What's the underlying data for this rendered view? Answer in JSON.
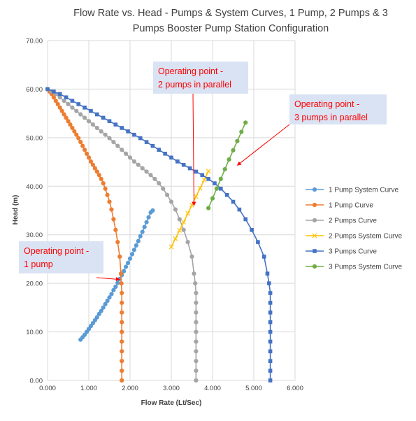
{
  "chart_data": {
    "type": "scatter",
    "title": "Flow Rate vs. Head - Pumps & System Curves, 1 Pump, 2 Pumps & 3 Pumps Booster Pump Station Configuration",
    "title_lines": [
      "Flow Rate vs. Head - Pumps & System Curves, 1 Pump, 2 Pumps & 3",
      "Pumps Booster Pump Station Configuration"
    ],
    "xlabel": "Flow Rate (Lt/Sec)",
    "ylabel": "Head (m)",
    "xlim": [
      0,
      6
    ],
    "ylim": [
      0,
      70
    ],
    "x_ticks": [
      "0.000",
      "1.000",
      "2.000",
      "3.000",
      "4.000",
      "5.000",
      "6.000"
    ],
    "y_ticks": [
      "0.00",
      "10.00",
      "20.00",
      "30.00",
      "40.00",
      "50.00",
      "60.00",
      "70.00"
    ],
    "grid": "vertical and horizontal major gridlines",
    "legend_position": "right",
    "series": [
      {
        "name": "1 Pump System Curve",
        "color": "#5b9bd5",
        "marker": "circle",
        "points": [
          [
            0.8,
            8.4
          ],
          [
            0.85,
            8.9
          ],
          [
            0.9,
            9.4
          ],
          [
            0.95,
            10.0
          ],
          [
            1.0,
            10.6
          ],
          [
            1.05,
            11.2
          ],
          [
            1.1,
            11.8
          ],
          [
            1.15,
            12.4
          ],
          [
            1.2,
            13.0
          ],
          [
            1.25,
            13.7
          ],
          [
            1.3,
            14.3
          ],
          [
            1.35,
            15.0
          ],
          [
            1.4,
            15.7
          ],
          [
            1.45,
            16.4
          ],
          [
            1.5,
            17.1
          ],
          [
            1.55,
            17.8
          ],
          [
            1.6,
            18.6
          ],
          [
            1.65,
            19.3
          ],
          [
            1.7,
            20.1
          ],
          [
            1.75,
            20.9
          ],
          [
            1.8,
            21.7
          ],
          [
            1.85,
            22.5
          ],
          [
            1.9,
            23.4
          ],
          [
            1.95,
            24.2
          ],
          [
            2.0,
            25.1
          ],
          [
            2.05,
            26.0
          ],
          [
            2.1,
            26.9
          ],
          [
            2.15,
            27.8
          ],
          [
            2.2,
            28.7
          ],
          [
            2.25,
            29.7
          ],
          [
            2.3,
            30.6
          ],
          [
            2.35,
            31.6
          ],
          [
            2.4,
            32.6
          ],
          [
            2.45,
            33.6
          ],
          [
            2.5,
            34.6
          ],
          [
            2.55,
            35.0
          ]
        ]
      },
      {
        "name": "1 Pump Curve",
        "color": "#ed7d31",
        "marker": "circle",
        "points": [
          [
            0.0,
            60.0
          ],
          [
            0.05,
            59.5
          ],
          [
            0.1,
            59.0
          ],
          [
            0.15,
            58.3
          ],
          [
            0.2,
            57.6
          ],
          [
            0.25,
            56.9
          ],
          [
            0.3,
            56.2
          ],
          [
            0.35,
            55.5
          ],
          [
            0.4,
            54.8
          ],
          [
            0.45,
            54.1
          ],
          [
            0.5,
            53.4
          ],
          [
            0.55,
            52.7
          ],
          [
            0.6,
            52.0
          ],
          [
            0.65,
            51.3
          ],
          [
            0.7,
            50.6
          ],
          [
            0.75,
            49.9
          ],
          [
            0.8,
            49.1
          ],
          [
            0.85,
            48.3
          ],
          [
            0.9,
            47.5
          ],
          [
            0.95,
            46.7
          ],
          [
            1.0,
            45.9
          ],
          [
            1.05,
            45.1
          ],
          [
            1.1,
            44.4
          ],
          [
            1.15,
            43.7
          ],
          [
            1.2,
            43.0
          ],
          [
            1.25,
            42.3
          ],
          [
            1.3,
            41.5
          ],
          [
            1.35,
            40.6
          ],
          [
            1.4,
            39.5
          ],
          [
            1.45,
            38.2
          ],
          [
            1.5,
            36.8
          ],
          [
            1.55,
            35.2
          ],
          [
            1.6,
            33.2
          ],
          [
            1.65,
            31.0
          ],
          [
            1.7,
            28.5
          ],
          [
            1.75,
            25.5
          ],
          [
            1.78,
            22.0
          ],
          [
            1.79,
            20.0
          ],
          [
            1.8,
            18.0
          ],
          [
            1.8,
            16.0
          ],
          [
            1.8,
            14.0
          ],
          [
            1.8,
            12.0
          ],
          [
            1.8,
            10.0
          ],
          [
            1.8,
            8.0
          ],
          [
            1.8,
            6.0
          ],
          [
            1.8,
            4.0
          ],
          [
            1.8,
            2.0
          ],
          [
            1.8,
            0.0
          ]
        ]
      },
      {
        "name": "2 Pumps Curve",
        "color": "#a5a5a5",
        "marker": "circle",
        "points": [
          [
            0.0,
            60.0
          ],
          [
            0.1,
            59.5
          ],
          [
            0.2,
            59.0
          ],
          [
            0.3,
            58.3
          ],
          [
            0.4,
            57.6
          ],
          [
            0.5,
            56.9
          ],
          [
            0.6,
            56.2
          ],
          [
            0.7,
            55.5
          ],
          [
            0.8,
            54.8
          ],
          [
            0.9,
            54.1
          ],
          [
            1.0,
            53.4
          ],
          [
            1.1,
            52.7
          ],
          [
            1.2,
            52.0
          ],
          [
            1.3,
            51.3
          ],
          [
            1.4,
            50.6
          ],
          [
            1.5,
            49.9
          ],
          [
            1.6,
            49.1
          ],
          [
            1.7,
            48.3
          ],
          [
            1.8,
            47.5
          ],
          [
            1.9,
            46.7
          ],
          [
            2.0,
            45.9
          ],
          [
            2.1,
            45.1
          ],
          [
            2.2,
            44.4
          ],
          [
            2.3,
            43.7
          ],
          [
            2.4,
            43.0
          ],
          [
            2.5,
            42.3
          ],
          [
            2.6,
            41.5
          ],
          [
            2.7,
            40.6
          ],
          [
            2.8,
            39.5
          ],
          [
            2.9,
            38.2
          ],
          [
            3.0,
            36.8
          ],
          [
            3.1,
            35.2
          ],
          [
            3.2,
            33.2
          ],
          [
            3.3,
            31.0
          ],
          [
            3.4,
            28.5
          ],
          [
            3.5,
            25.5
          ],
          [
            3.55,
            22.0
          ],
          [
            3.58,
            20.0
          ],
          [
            3.6,
            18.0
          ],
          [
            3.6,
            16.0
          ],
          [
            3.6,
            14.0
          ],
          [
            3.6,
            12.0
          ],
          [
            3.6,
            10.0
          ],
          [
            3.6,
            8.0
          ],
          [
            3.6,
            6.0
          ],
          [
            3.6,
            4.0
          ],
          [
            3.6,
            2.0
          ],
          [
            3.6,
            0.0
          ]
        ]
      },
      {
        "name": "2 Pumps System Curve",
        "color": "#ffc000",
        "marker": "x",
        "points": [
          [
            3.0,
            27.5
          ],
          [
            3.1,
            29.2
          ],
          [
            3.2,
            30.9
          ],
          [
            3.3,
            32.6
          ],
          [
            3.4,
            34.4
          ],
          [
            3.5,
            36.1
          ],
          [
            3.6,
            37.9
          ],
          [
            3.7,
            39.6
          ],
          [
            3.8,
            41.3
          ],
          [
            3.9,
            43.1
          ]
        ]
      },
      {
        "name": "3 Pumps Curve",
        "color": "#4472c4",
        "marker": "square",
        "points": [
          [
            0.0,
            60.0
          ],
          [
            0.15,
            59.5
          ],
          [
            0.3,
            59.0
          ],
          [
            0.45,
            58.3
          ],
          [
            0.6,
            57.6
          ],
          [
            0.75,
            56.9
          ],
          [
            0.9,
            56.2
          ],
          [
            1.05,
            55.5
          ],
          [
            1.2,
            54.8
          ],
          [
            1.35,
            54.1
          ],
          [
            1.5,
            53.4
          ],
          [
            1.65,
            52.7
          ],
          [
            1.8,
            52.0
          ],
          [
            1.95,
            51.3
          ],
          [
            2.1,
            50.6
          ],
          [
            2.25,
            49.9
          ],
          [
            2.4,
            49.1
          ],
          [
            2.55,
            48.3
          ],
          [
            2.7,
            47.5
          ],
          [
            2.85,
            46.7
          ],
          [
            3.0,
            45.9
          ],
          [
            3.15,
            45.1
          ],
          [
            3.3,
            44.4
          ],
          [
            3.45,
            43.7
          ],
          [
            3.6,
            43.0
          ],
          [
            3.75,
            42.3
          ],
          [
            3.9,
            41.5
          ],
          [
            4.05,
            40.6
          ],
          [
            4.2,
            39.5
          ],
          [
            4.35,
            38.2
          ],
          [
            4.5,
            36.8
          ],
          [
            4.65,
            35.2
          ],
          [
            4.8,
            33.2
          ],
          [
            4.95,
            31.0
          ],
          [
            5.1,
            28.5
          ],
          [
            5.25,
            25.5
          ],
          [
            5.33,
            22.0
          ],
          [
            5.37,
            20.0
          ],
          [
            5.4,
            18.0
          ],
          [
            5.4,
            16.0
          ],
          [
            5.4,
            14.0
          ],
          [
            5.4,
            12.0
          ],
          [
            5.4,
            10.0
          ],
          [
            5.4,
            8.0
          ],
          [
            5.4,
            6.0
          ],
          [
            5.4,
            4.0
          ],
          [
            5.4,
            2.0
          ],
          [
            5.4,
            0.0
          ]
        ]
      },
      {
        "name": "3 Pumps System Curve",
        "color": "#70ad47",
        "marker": "circle",
        "points": [
          [
            3.9,
            35.5
          ],
          [
            4.0,
            37.5
          ],
          [
            4.1,
            39.5
          ],
          [
            4.2,
            41.5
          ],
          [
            4.3,
            43.5
          ],
          [
            4.4,
            45.5
          ],
          [
            4.5,
            47.4
          ],
          [
            4.6,
            49.3
          ],
          [
            4.7,
            51.2
          ],
          [
            4.8,
            53.1
          ]
        ]
      }
    ],
    "annotations": [
      {
        "lines": [
          "Operating point -",
          "1 pump"
        ],
        "target": [
          1.75,
          20.8
        ]
      },
      {
        "lines": [
          "Operating point -",
          "2 pumps in parallel"
        ],
        "target": [
          3.55,
          36.0
        ]
      },
      {
        "lines": [
          "Operating point -",
          "3 pumps in parallel"
        ],
        "target": [
          4.6,
          44.3
        ]
      }
    ]
  }
}
